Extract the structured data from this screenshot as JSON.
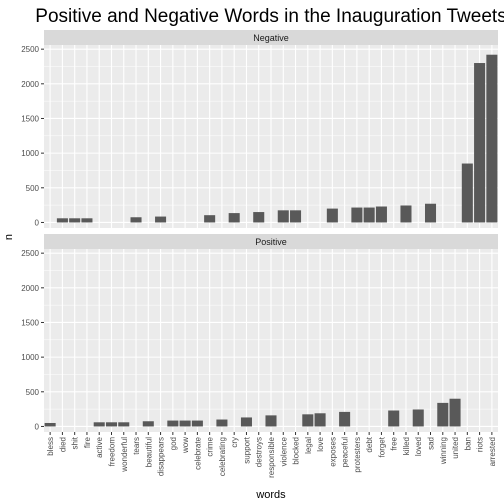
{
  "chart_data": {
    "type": "bar",
    "title": "Positive and Negative Words in the Inauguration Tweets",
    "xlabel": "words",
    "ylabel": "n",
    "ylim": [
      -80,
      2560
    ],
    "yticks": [
      0,
      500,
      1000,
      1500,
      2000,
      2500
    ],
    "grid": true,
    "categories": [
      "bless",
      "died",
      "shit",
      "fire",
      "active",
      "freedom",
      "wonderful",
      "tears",
      "beautiful",
      "disappears",
      "god",
      "wow",
      "celebrate",
      "crime",
      "celebrating",
      "cry",
      "support",
      "destroys",
      "responsible",
      "violence",
      "blocked",
      "legal",
      "love",
      "exposes",
      "peaceful",
      "protesters",
      "debt",
      "forget",
      "free",
      "killed",
      "loved",
      "sad",
      "winning",
      "united",
      "ban",
      "riots",
      "arrested"
    ],
    "panels": [
      {
        "name": "Negative",
        "values": [
          0,
          60,
          60,
          60,
          0,
          0,
          0,
          75,
          0,
          85,
          0,
          0,
          0,
          105,
          0,
          135,
          0,
          150,
          0,
          175,
          175,
          0,
          0,
          200,
          0,
          215,
          215,
          230,
          0,
          245,
          0,
          270,
          0,
          0,
          850,
          2300,
          2420
        ]
      },
      {
        "name": "Positive",
        "values": [
          50,
          0,
          0,
          0,
          60,
          60,
          60,
          0,
          75,
          0,
          85,
          85,
          85,
          0,
          100,
          0,
          130,
          0,
          160,
          0,
          0,
          175,
          190,
          0,
          210,
          0,
          0,
          0,
          230,
          0,
          245,
          0,
          340,
          400,
          0,
          0,
          0
        ]
      }
    ],
    "bar_color": "#595959",
    "panel_bg": "#ebebeb",
    "strip_bg": "#d9d9d9",
    "grid_color": "#ffffff"
  }
}
